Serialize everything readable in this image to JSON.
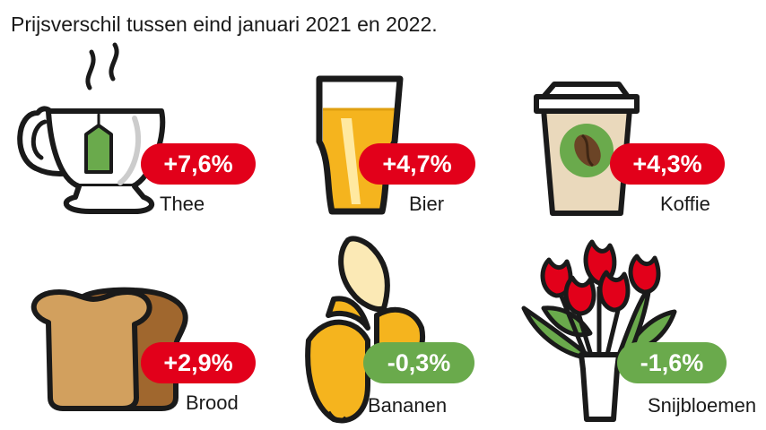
{
  "title": "Prijsverschil tussen eind januari 2021 en 2022.",
  "colors": {
    "increase": "#e2001a",
    "decrease": "#6aaa4c"
  },
  "chart_data": {
    "type": "table",
    "title": "Prijsverschil tussen eind januari 2021 en 2022.",
    "unit": "%",
    "categories": [
      "Thee",
      "Bier",
      "Koffie",
      "Brood",
      "Bananen",
      "Snijbloemen"
    ],
    "values": [
      7.6,
      4.7,
      4.3,
      2.9,
      -0.3,
      -1.6
    ],
    "value_labels": [
      "+7,6%",
      "+4,7%",
      "+4,3%",
      "+2,9%",
      "-0,3%",
      "-1,6%"
    ],
    "icons": [
      "tea-cup-icon",
      "beer-glass-icon",
      "coffee-cup-icon",
      "bread-icon",
      "banana-icon",
      "tulips-icon"
    ]
  }
}
